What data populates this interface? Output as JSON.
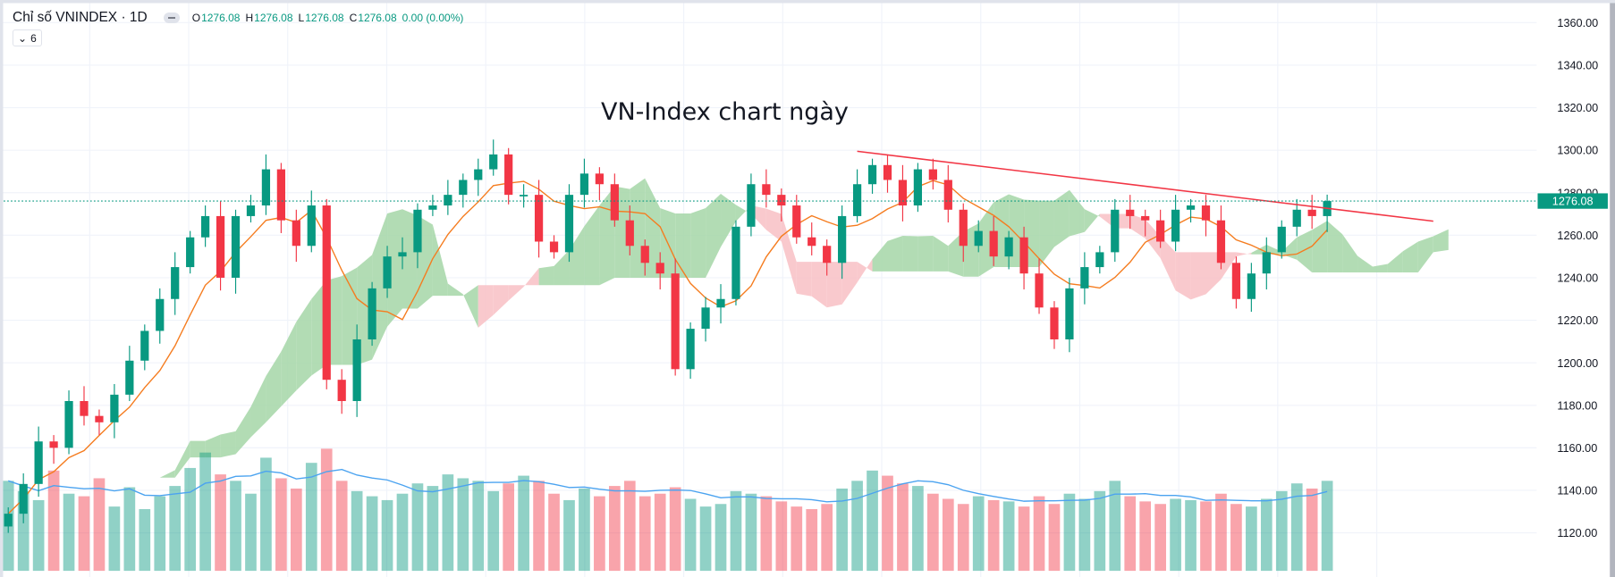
{
  "header": {
    "symbol": "Chỉ số VNINDEX · 1D",
    "o_label": "O",
    "o": "1276.08",
    "h_label": "H",
    "h": "1276.08",
    "l_label": "L",
    "l": "1276.08",
    "c_label": "C",
    "c": "1276.08",
    "change": "0.00 (0.00%)",
    "indicator_toggle": "6"
  },
  "colors": {
    "up": "#089981",
    "down": "#f23645",
    "ma": "#f57c1f",
    "volume_ma": "#4ba3f0",
    "cloud_up": "#a5d6a7",
    "cloud_down": "#f8c3c8",
    "trendline": "#f23645",
    "price_label": "#089981"
  },
  "chart_data": {
    "type": "candlestick",
    "title": "VN-Index chart ngày",
    "ylim": [
      1110,
      1365
    ],
    "y_ticks": [
      "1360.00",
      "1340.00",
      "1320.00",
      "1300.00",
      "1280.00",
      "1260.00",
      "1240.00",
      "1220.00",
      "1200.00",
      "1180.00",
      "1160.00",
      "1140.00",
      "1120.00"
    ],
    "last_price": "1276.08",
    "close": [
      1129,
      1143,
      1163,
      1160,
      1182,
      1175,
      1172,
      1185,
      1201,
      1215,
      1230,
      1245,
      1259,
      1269,
      1240,
      1269,
      1274,
      1291,
      1267,
      1255,
      1274,
      1192,
      1182,
      1211,
      1235,
      1250,
      1252,
      1272,
      1274,
      1279,
      1286,
      1291,
      1298,
      1279,
      1279,
      1257,
      1252,
      1279,
      1289,
      1284,
      1267,
      1255,
      1247,
      1242,
      1197,
      1216,
      1226,
      1230,
      1264,
      1284,
      1279,
      1274,
      1259,
      1255,
      1247,
      1269,
      1284,
      1293,
      1286,
      1274,
      1291,
      1286,
      1272,
      1255,
      1262,
      1250,
      1259,
      1242,
      1226,
      1211,
      1235,
      1245,
      1252,
      1272,
      1269,
      1267,
      1257,
      1272,
      1274,
      1267,
      1247,
      1230,
      1242,
      1252,
      1264,
      1272,
      1269,
      1276.08
    ],
    "volume_relative": [
      70,
      62,
      55,
      78,
      60,
      58,
      72,
      50,
      65,
      48,
      58,
      66,
      80,
      92,
      75,
      70,
      60,
      88,
      72,
      64,
      84,
      95,
      70,
      62,
      58,
      55,
      60,
      68,
      66,
      75,
      72,
      70,
      62,
      68,
      74,
      70,
      60,
      55,
      64,
      58,
      66,
      70,
      58,
      60,
      65,
      56,
      50,
      52,
      62,
      60,
      58,
      54,
      50,
      48,
      52,
      64,
      70,
      78,
      74,
      68,
      66,
      60,
      56,
      52,
      58,
      55,
      54,
      50,
      58,
      52,
      60,
      56,
      62,
      70,
      58,
      54,
      52,
      56,
      55,
      54,
      60,
      52,
      50,
      56,
      62,
      68,
      64,
      70
    ],
    "trendline": {
      "from": {
        "index": 56,
        "price": 1299.5
      },
      "to": {
        "index": 94,
        "price": 1266.6
      }
    }
  }
}
